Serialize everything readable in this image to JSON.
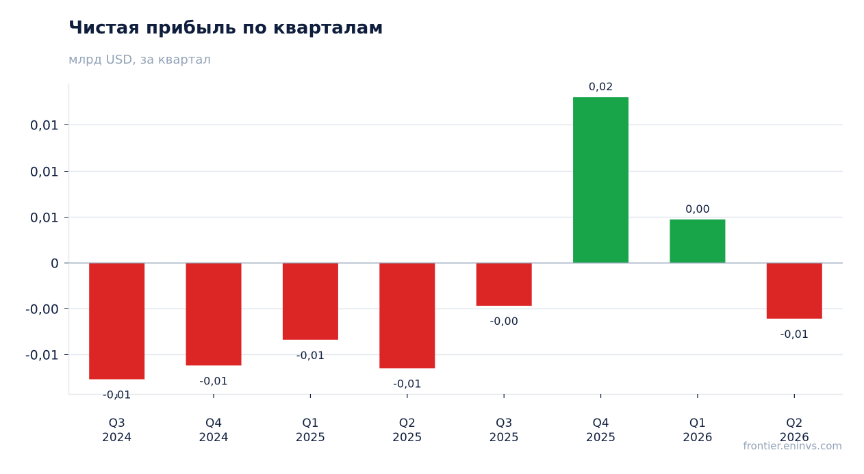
{
  "chart_title": "Чистая прибыль по кварталам",
  "chart_subtitle": "млрд USD, за квартал",
  "watermark": "frontier.eninvs.com",
  "colors": {
    "positive": "#18a54a",
    "negative": "#dc2626",
    "grid": "#e2e8f0",
    "zero_line": "#94a3b8",
    "text": "#0f1e3d"
  },
  "chart_data": {
    "type": "bar",
    "categories": [
      [
        "Q3",
        "2024"
      ],
      [
        "Q4",
        "2024"
      ],
      [
        "Q1",
        "2025"
      ],
      [
        "Q2",
        "2025"
      ],
      [
        "Q3",
        "2025"
      ],
      [
        "Q4",
        "2025"
      ],
      [
        "Q1",
        "2026"
      ],
      [
        "Q2",
        "2026"
      ]
    ],
    "values": [
      -0.0127,
      -0.0112,
      -0.0084,
      -0.0115,
      -0.0047,
      0.018,
      0.0047,
      -0.0061
    ],
    "data_labels": [
      "-0,01",
      "-0,01",
      "-0,01",
      "-0,01",
      "-0,00",
      "0,02",
      "0,00",
      "-0,01"
    ],
    "y_ticks": [
      {
        "value": -0.01,
        "label": "-0,01"
      },
      {
        "value": -0.005,
        "label": "-0,00"
      },
      {
        "value": 0,
        "label": "0"
      },
      {
        "value": 0.005,
        "label": "0,01"
      },
      {
        "value": 0.01,
        "label": "0,01"
      },
      {
        "value": 0.015,
        "label": "0,01"
      }
    ],
    "ylim": [
      -0.0143,
      0.0195
    ],
    "grid": true,
    "legend": "none"
  }
}
